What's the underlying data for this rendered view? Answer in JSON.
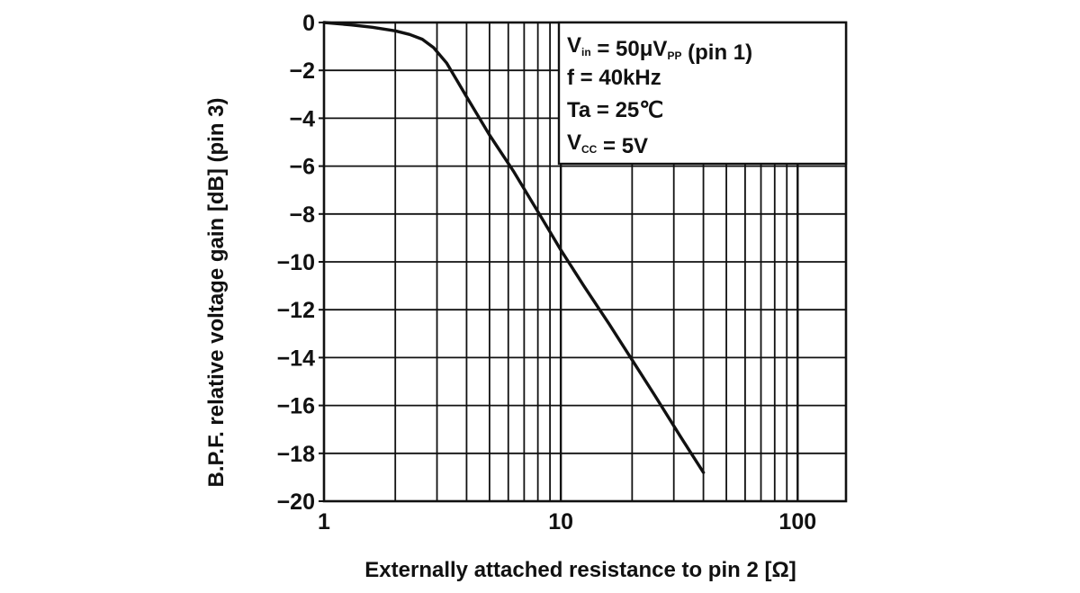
{
  "chart_data": {
    "type": "line",
    "x_scale": "log",
    "xlim": [
      1,
      160
    ],
    "ylim": [
      -20,
      0
    ],
    "xlabel": "Externally attached resistance to pin 2 [Ω]",
    "ylabel": "B.P.F. relative voltage gain [dB] (pin 3)",
    "x_ticks": [
      {
        "value": 1,
        "label": "1"
      },
      {
        "value": 10,
        "label": "10"
      },
      {
        "value": 100,
        "label": "100"
      }
    ],
    "y_ticks": [
      {
        "value": 0,
        "label": "0"
      },
      {
        "value": -2,
        "label": "−2"
      },
      {
        "value": -4,
        "label": "−4"
      },
      {
        "value": -6,
        "label": "−6"
      },
      {
        "value": -8,
        "label": "−8"
      },
      {
        "value": -10,
        "label": "−10"
      },
      {
        "value": -12,
        "label": "−12"
      },
      {
        "value": -14,
        "label": "−14"
      },
      {
        "value": -16,
        "label": "−16"
      },
      {
        "value": -18,
        "label": "−18"
      },
      {
        "value": -20,
        "label": "−20"
      }
    ],
    "grid": true,
    "legend": "none",
    "series": [
      {
        "x": [
          1,
          1.3,
          1.6,
          2,
          2.3,
          2.6,
          2.9,
          3.3,
          4,
          5,
          6.3,
          8,
          10,
          12.5,
          16,
          20,
          25,
          32,
          40
        ],
        "y": [
          0,
          -0.1,
          -0.2,
          -0.35,
          -0.5,
          -0.7,
          -1.05,
          -1.7,
          -3.1,
          -4.7,
          -6.2,
          -7.9,
          -9.5,
          -11.0,
          -12.6,
          -14.1,
          -15.6,
          -17.3,
          -18.8
        ]
      }
    ],
    "annotation": {
      "lines": [
        {
          "parts": [
            {
              "t": "V",
              "sub": false
            },
            {
              "t": "in",
              "sub": true
            },
            {
              "t": " = 50μV",
              "sub": false
            },
            {
              "t": "PP",
              "sub": true
            },
            {
              "t": " (pin 1)",
              "sub": false
            }
          ]
        },
        {
          "parts": [
            {
              "t": "f = 40kHz",
              "sub": false
            }
          ]
        },
        {
          "parts": [
            {
              "t": "Ta = 25℃",
              "sub": false
            }
          ]
        },
        {
          "parts": [
            {
              "t": "V",
              "sub": false
            },
            {
              "t": "CC",
              "sub": true
            },
            {
              "t": " = 5V",
              "sub": false
            }
          ]
        }
      ]
    }
  }
}
